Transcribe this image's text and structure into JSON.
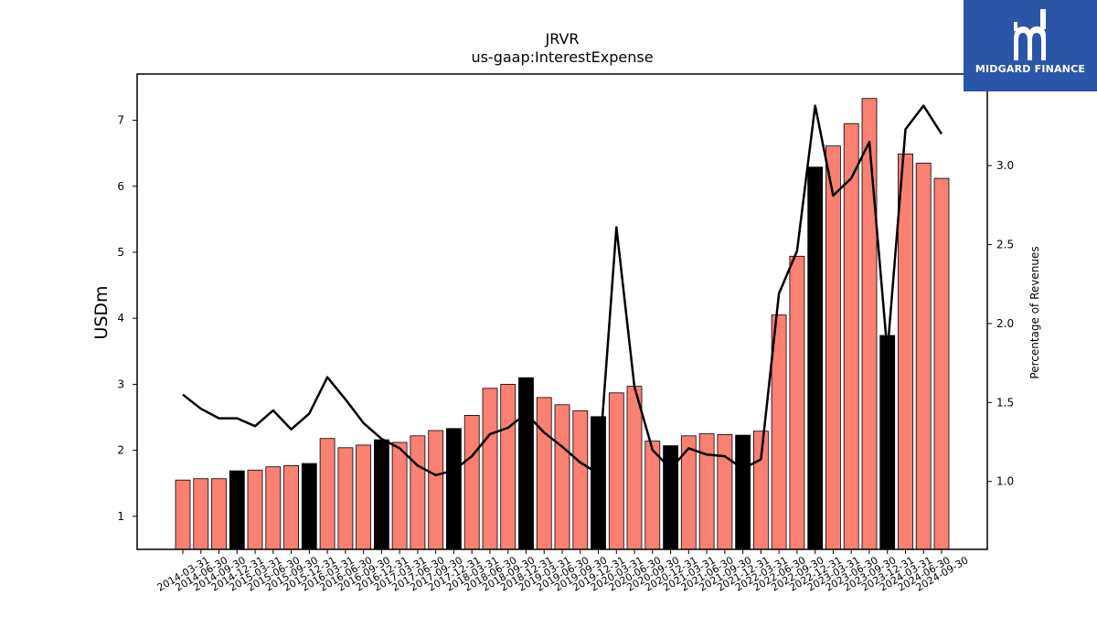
{
  "header": {
    "ticker": "JRVR",
    "metric": "us-gaap:InterestExpense"
  },
  "brand": {
    "name": "MIDGARD FINANCE",
    "color": "#2b56a8",
    "logo_icon": "midgard-m-logo-icon"
  },
  "colors": {
    "bar_regular": "#fa8072",
    "bar_q4": "#000000",
    "line": "#000000"
  },
  "chart_data": {
    "type": "bar+line",
    "title": "JRVR",
    "subtitle": "us-gaap:InterestExpense",
    "ylabel_left": "USDm",
    "ylabel_right": "Percentage of Revenues",
    "ylim_left": [
      0.5,
      7.7
    ],
    "ylim_right": [
      0.57,
      3.58
    ],
    "yticks_left": [
      1,
      2,
      3,
      4,
      5,
      6,
      7
    ],
    "yticks_right": [
      1.0,
      1.5,
      2.0,
      2.5,
      3.0
    ],
    "categories": [
      "2014-03-31",
      "2014-06-30",
      "2014-09-30",
      "2014-12-31",
      "2015-03-31",
      "2015-06-30",
      "2015-09-30",
      "2015-12-31",
      "2016-03-31",
      "2016-06-30",
      "2016-09-30",
      "2016-12-31",
      "2017-03-31",
      "2017-06-30",
      "2017-09-30",
      "2017-12-31",
      "2018-03-31",
      "2018-06-30",
      "2018-09-30",
      "2018-12-31",
      "2019-03-31",
      "2019-06-30",
      "2019-09-30",
      "2019-12-31",
      "2020-03-31",
      "2020-06-30",
      "2020-09-30",
      "2020-12-31",
      "2021-03-31",
      "2021-06-30",
      "2021-09-30",
      "2021-12-31",
      "2022-03-31",
      "2022-06-30",
      "2022-09-30",
      "2022-12-31",
      "2023-03-31",
      "2023-06-30",
      "2023-09-30",
      "2023-12-31",
      "2024-03-31",
      "2024-06-30",
      "2024-09-30"
    ],
    "series": [
      {
        "kind": "bar",
        "values": [
          1.55,
          1.57,
          1.57,
          1.69,
          1.7,
          1.75,
          1.77,
          1.8,
          2.18,
          2.04,
          2.08,
          2.16,
          2.12,
          2.22,
          2.3,
          2.33,
          2.53,
          2.94,
          3.0,
          3.1,
          2.8,
          2.69,
          2.6,
          2.51,
          2.87,
          2.97,
          2.14,
          2.07,
          2.22,
          2.25,
          2.24,
          2.23,
          2.29,
          4.05,
          4.94,
          6.29,
          6.61,
          6.95,
          7.33,
          3.74,
          6.49,
          6.35,
          6.12
        ]
      },
      {
        "kind": "line",
        "axis": "right",
        "values": [
          1.55,
          1.46,
          1.4,
          1.4,
          1.35,
          1.45,
          1.33,
          1.43,
          1.66,
          1.52,
          1.37,
          1.27,
          1.21,
          1.1,
          1.04,
          1.07,
          1.16,
          1.3,
          1.34,
          1.43,
          1.31,
          1.22,
          1.12,
          1.05,
          2.61,
          1.6,
          1.2,
          1.08,
          1.21,
          1.17,
          1.16,
          1.08,
          1.14,
          2.19,
          2.46,
          3.38,
          2.81,
          2.92,
          3.15,
          1.82,
          3.23,
          3.38,
          3.2
        ]
      }
    ]
  }
}
